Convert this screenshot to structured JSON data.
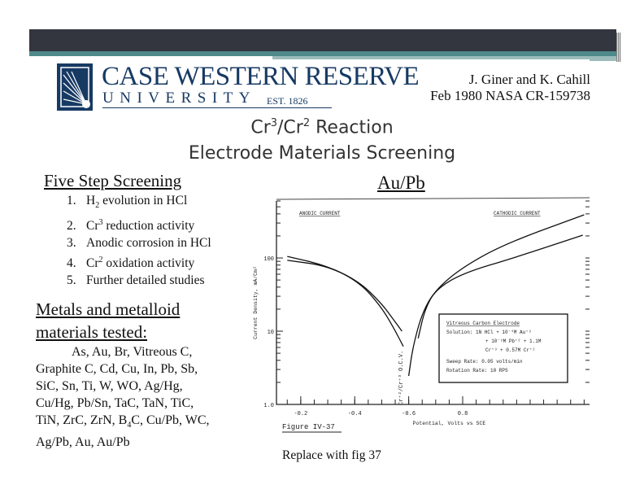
{
  "header": {
    "logo": {
      "line1": "CASE WESTERN RESERVE",
      "line2": "UNIVERSITY",
      "est": "EST. 1826"
    },
    "credit_line1": "J. Giner and K. Cahill",
    "credit_line2": "Feb 1980 NASA CR-159738"
  },
  "title": {
    "line1_a": "Cr",
    "line1_sup1": "3",
    "line1_b": "/Cr",
    "line1_sup2": "2",
    "line1_c": " Reaction",
    "line2": "Electrode Materials Screening"
  },
  "screening": {
    "heading": "Five Step Screening",
    "items": [
      {
        "num": "1.",
        "a": "H",
        "sub": "2",
        "b": " evolution in HCl"
      },
      {
        "num": "2.",
        "a": "Cr",
        "sup": "3",
        "b": " reduction activity"
      },
      {
        "num": "3.",
        "a": "Anodic corrosion in HCl"
      },
      {
        "num": "4.",
        "a": "Cr",
        "sup": "2",
        "b": " oxidation activity"
      },
      {
        "num": "5.",
        "a": "Further detailed studies"
      }
    ]
  },
  "materials": {
    "heading_line1": "Metals and metalloid",
    "heading_line2": "materials tested:",
    "lines": [
      "As, Au, Br, Vitreous C,",
      "Graphite C, Cd, Cu, In, Pb, Sb,",
      "SiC, Sn, Ti, W, WO, Ag/Hg,",
      "Cu/Hg, Pb/Sn, TaC, TaN, TiC,",
      "TiN, ZrC, ZrN, B",
      "Ag/Pb, Au,  Au/Pb"
    ],
    "line5_sub": "4",
    "line5_rest": "C, Cu/Pb, WC,"
  },
  "figure_label": "Au/Pb",
  "caption_note": "Replace with fig 37",
  "chart_data": {
    "type": "line",
    "figure_title": "Figure IV-37",
    "xlabel": "Potential, Volts vs SCE",
    "ylabel": "Current Density, mA/Cm²",
    "yscale": "log",
    "ylim": [
      1,
      600
    ],
    "xlim": [
      0.11,
      1.27
    ],
    "x_ticks": [
      {
        "v": 0.2,
        "label": "-0.2"
      },
      {
        "v": 0.4,
        "label": "-0.4"
      },
      {
        "v": 0.6,
        "label": "-0.6"
      },
      {
        "v": 0.8,
        "label": "0.8"
      }
    ],
    "y_ticks": [
      {
        "v": 1,
        "label": "1.0"
      },
      {
        "v": 10,
        "label": "10"
      },
      {
        "v": 100,
        "label": "100"
      }
    ],
    "annotations": {
      "anodic": "ANODIC CURRENT",
      "cathodic": "CATHODIC CURRENT",
      "ocv": "Cr⁺²/Cr⁺³ O.C.V."
    },
    "legend_box": [
      "Vitreous Carbon Electrode",
      "Solution:  1N HCl + 10⁻⁴M Au⁺³",
      "+ 10⁻³M Pb⁺² + 1.1M",
      "Cr⁺³ + 0.57M Cr⁺²",
      "Sweep Rate:  0.05 volts/min",
      "Rotation Rate:  10 RPS"
    ],
    "series": [
      {
        "x": [
          0.15,
          0.294,
          0.415,
          0.497,
          0.542,
          0.575
        ],
        "y": [
          105,
          79,
          48,
          24.5,
          14.7,
          10
        ]
      },
      {
        "x": [
          0.15,
          0.3,
          0.42,
          0.5,
          0.545,
          0.58
        ],
        "y": [
          93,
          78,
          46,
          21,
          11,
          6.2
        ]
      },
      {
        "x": [
          0.6,
          0.615,
          0.65,
          0.7,
          0.8,
          0.96,
          1.25
        ],
        "y": [
          2.45,
          6,
          18,
          37,
          75,
          158,
          388
        ]
      },
      {
        "x": [
          0.635,
          0.66,
          0.7,
          0.8,
          1.0,
          1.245
        ],
        "y": [
          8,
          20,
          37,
          62,
          103,
          205
        ]
      }
    ]
  }
}
